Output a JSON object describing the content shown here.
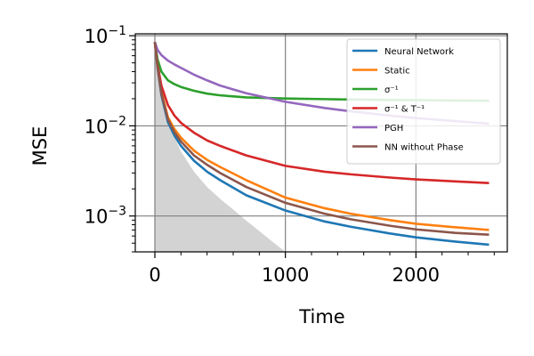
{
  "chart_data": {
    "type": "line",
    "title": "",
    "xlabel": "Time",
    "ylabel": "MSE",
    "xlim": [
      -150,
      2700
    ],
    "ylim": [
      0.0004,
      0.105
    ],
    "yscale": "log",
    "xticks": [
      0,
      1000,
      2000
    ],
    "xtick_labels": [
      "0",
      "1000",
      "2000"
    ],
    "yticks": [
      0.001,
      0.01,
      0.1
    ],
    "ytick_labels": [
      {
        "base": "10",
        "exp": "−3"
      },
      {
        "base": "10",
        "exp": "−2"
      },
      {
        "base": "10",
        "exp": "−1"
      }
    ],
    "grid": true,
    "legend_position": "top-right",
    "shaded_area": {
      "color": "#d3d3d3",
      "x": [
        0,
        20,
        40,
        60,
        80,
        100,
        150,
        200,
        300,
        400,
        500,
        600,
        700,
        800,
        900,
        1000
      ],
      "y": [
        0.085,
        0.05,
        0.03,
        0.022,
        0.016,
        0.012,
        0.0075,
        0.0052,
        0.0031,
        0.0021,
        0.00155,
        0.00118,
        0.00089,
        0.00068,
        0.00052,
        0.0004
      ]
    },
    "series": [
      {
        "name": "Neural Network",
        "legend_label": "Neural Network",
        "color": "#1f77b4",
        "x": [
          0,
          20,
          50,
          100,
          150,
          200,
          300,
          400,
          500,
          700,
          1000,
          1300,
          1500,
          1800,
          2000,
          2300,
          2560
        ],
        "y": [
          0.085,
          0.045,
          0.022,
          0.011,
          0.0078,
          0.006,
          0.0041,
          0.0031,
          0.0025,
          0.0017,
          0.00115,
          0.00087,
          0.00076,
          0.00064,
          0.00058,
          0.00052,
          0.00048
        ]
      },
      {
        "name": "Static",
        "legend_label": "Static",
        "color": "#ff7f0e",
        "x": [
          0,
          20,
          50,
          100,
          150,
          200,
          300,
          400,
          500,
          700,
          1000,
          1300,
          1500,
          1800,
          2000,
          2300,
          2560
        ],
        "y": [
          0.085,
          0.046,
          0.024,
          0.0125,
          0.0092,
          0.0074,
          0.0053,
          0.0042,
          0.0035,
          0.0025,
          0.0016,
          0.00122,
          0.00106,
          0.0009,
          0.00082,
          0.00075,
          0.0007
        ]
      },
      {
        "name": "σ^{-1}",
        "legend_label": "σ⁻¹",
        "color": "#2ca02c",
        "x": [
          0,
          20,
          50,
          100,
          150,
          200,
          300,
          400,
          500,
          700,
          1000,
          1300,
          1500,
          1800,
          2000,
          2300,
          2560
        ],
        "y": [
          0.085,
          0.055,
          0.04,
          0.032,
          0.029,
          0.027,
          0.0245,
          0.0228,
          0.0218,
          0.0207,
          0.0201,
          0.0198,
          0.0196,
          0.0194,
          0.0193,
          0.0191,
          0.019
        ]
      },
      {
        "name": "σ^{-1} & T^{-1}",
        "legend_label": "σ⁻¹ & T⁻¹",
        "color": "#d62728",
        "x": [
          0,
          20,
          50,
          100,
          150,
          200,
          300,
          400,
          500,
          700,
          1000,
          1300,
          1500,
          1800,
          2000,
          2300,
          2560
        ],
        "y": [
          0.085,
          0.048,
          0.028,
          0.017,
          0.013,
          0.0108,
          0.0084,
          0.0069,
          0.006,
          0.0047,
          0.0036,
          0.0031,
          0.0029,
          0.00267,
          0.00255,
          0.00242,
          0.00232
        ]
      },
      {
        "name": "PGH",
        "legend_label": "PGH",
        "color": "#9467bd",
        "x": [
          0,
          20,
          50,
          100,
          150,
          200,
          300,
          400,
          500,
          700,
          1000,
          1300,
          1500,
          1800,
          2000,
          2300,
          2560
        ],
        "y": [
          0.085,
          0.07,
          0.061,
          0.053,
          0.048,
          0.044,
          0.037,
          0.032,
          0.028,
          0.023,
          0.0185,
          0.0158,
          0.0145,
          0.013,
          0.0122,
          0.0113,
          0.0106
        ]
      },
      {
        "name": "NN without Phase",
        "legend_label": "NN without Phase",
        "color": "#8c564b",
        "x": [
          0,
          20,
          50,
          100,
          150,
          200,
          300,
          400,
          500,
          700,
          1000,
          1300,
          1500,
          1800,
          2000,
          2300,
          2560
        ],
        "y": [
          0.085,
          0.045,
          0.023,
          0.0118,
          0.0085,
          0.0067,
          0.0047,
          0.0037,
          0.003,
          0.0021,
          0.0014,
          0.00106,
          0.00092,
          0.00078,
          0.00071,
          0.00065,
          0.00062
        ]
      }
    ]
  }
}
